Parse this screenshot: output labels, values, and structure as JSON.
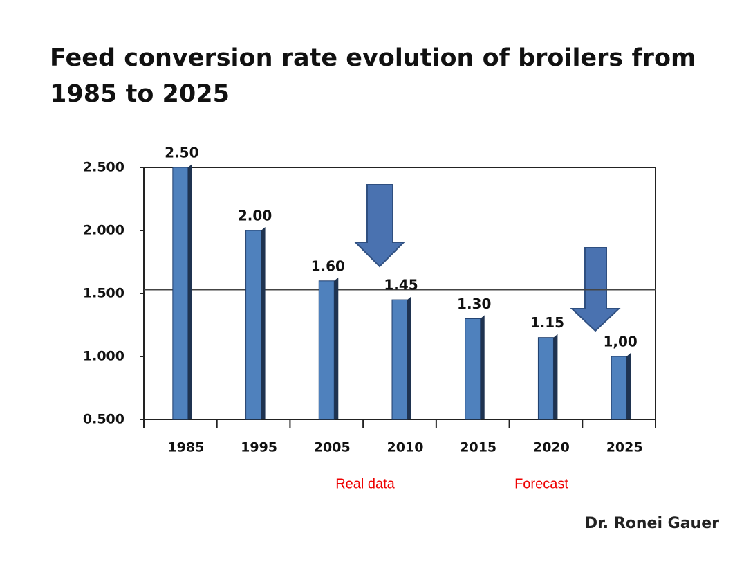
{
  "chart_data": {
    "type": "bar",
    "title": "Feed conversion rate evolution of broilers from 1985 to 2025",
    "categories": [
      "1985",
      "1995",
      "2005",
      "2010",
      "2015",
      "2020",
      "2025"
    ],
    "values": [
      2.5,
      2.0,
      1.6,
      1.45,
      1.3,
      1.15,
      1.0
    ],
    "value_labels": [
      "2.50",
      "2.00",
      "1.60",
      "1.45",
      "1.30",
      "1.15",
      "1,00"
    ],
    "color": "#4f81bd",
    "ylim": [
      0.5,
      2.5
    ],
    "yticks": [
      {
        "value": 2.5,
        "label": "2.500"
      },
      {
        "value": 2.0,
        "label": "2.000"
      },
      {
        "value": 1.5,
        "label": "1.500"
      },
      {
        "value": 1.0,
        "label": "1.000"
      },
      {
        "value": 0.5,
        "label": "0.500"
      }
    ],
    "reference_line": 1.53,
    "annotations": [
      "Real data",
      "Forecast"
    ],
    "author": "Dr. Ronei Gauer"
  }
}
